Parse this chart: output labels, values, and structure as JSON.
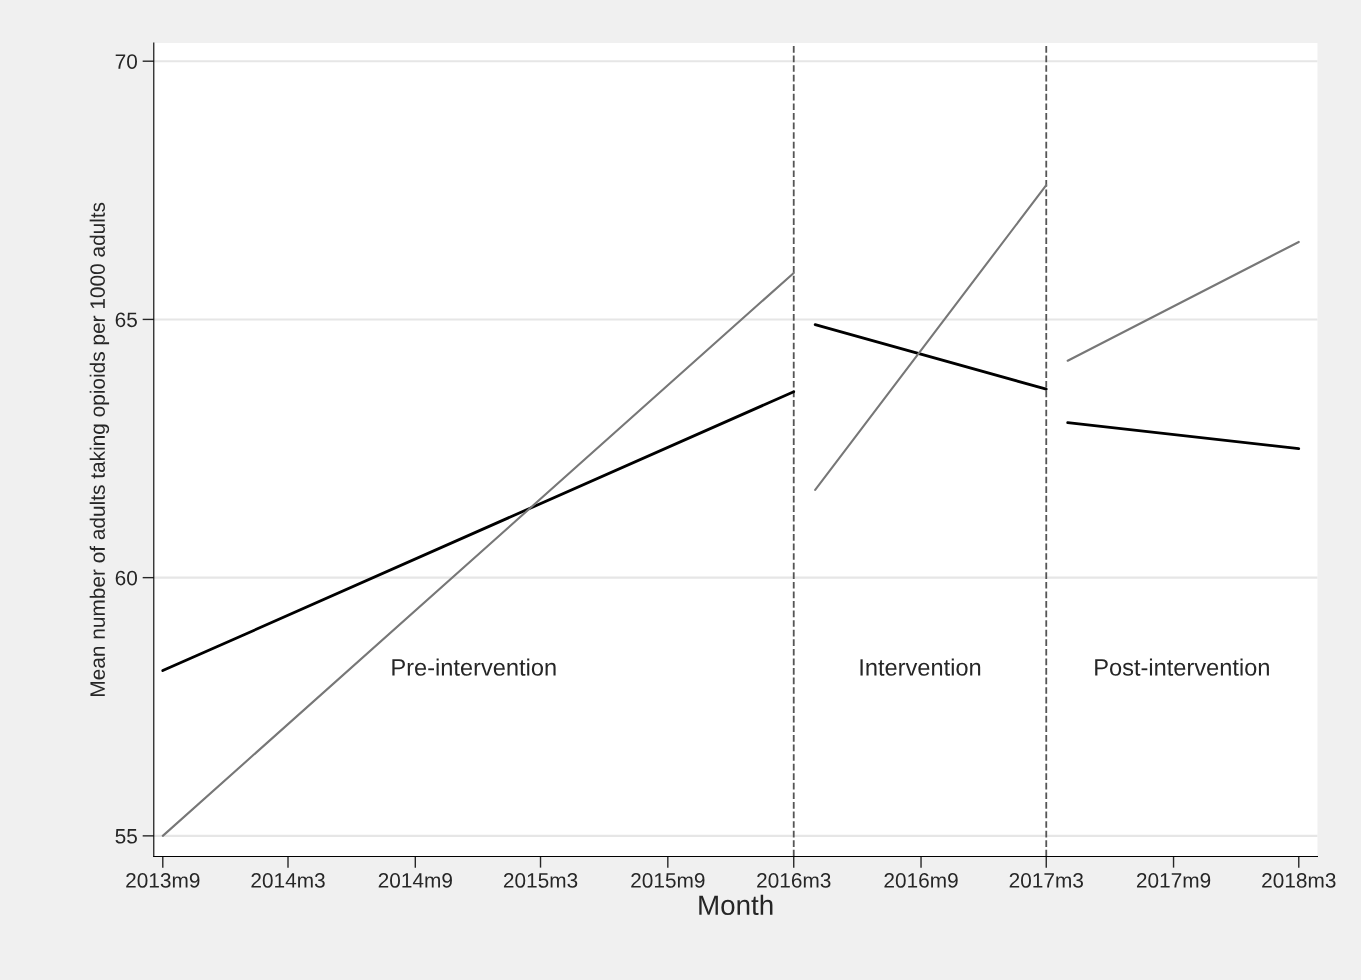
{
  "chart_data": {
    "type": "line",
    "xlabel": "Month",
    "ylabel": "Mean number of adults taking opioids per 1000 adults",
    "series": [
      {
        "color": "#000000",
        "x": [
          "2013-09",
          "2016-03"
        ],
        "values": [
          58.2,
          63.6
        ]
      },
      {
        "color": "#000000",
        "x": [
          "2016-04",
          "2017-03"
        ],
        "values": [
          64.9,
          63.65
        ]
      },
      {
        "color": "#000000",
        "x": [
          "2017-04",
          "2018-03"
        ],
        "values": [
          63.0,
          62.5
        ]
      },
      {
        "color": "#777777",
        "x": [
          "2013-09",
          "2016-03"
        ],
        "values": [
          55.0,
          65.9
        ]
      },
      {
        "color": "#777777",
        "x": [
          "2016-04",
          "2017-03"
        ],
        "values": [
          61.7,
          67.6
        ]
      },
      {
        "color": "#777777",
        "x": [
          "2017-04",
          "2018-03"
        ],
        "values": [
          64.2,
          66.5
        ]
      }
    ],
    "xlim": [
      "2013-08-19",
      "2018-03-28"
    ],
    "ylim": [
      54.6,
      70.35
    ],
    "xticks": [
      {
        "value": "2013-09",
        "label": "2013m9"
      },
      {
        "value": "2014-03",
        "label": "2014m3"
      },
      {
        "value": "2014-09",
        "label": "2014m9"
      },
      {
        "value": "2015-03",
        "label": "2015m3"
      },
      {
        "value": "2015-09",
        "label": "2015m9"
      },
      {
        "value": "2016-03",
        "label": "2016m3"
      },
      {
        "value": "2016-09",
        "label": "2016m9"
      },
      {
        "value": "2017-03",
        "label": "2017m3"
      },
      {
        "value": "2017-09",
        "label": "2017m9"
      },
      {
        "value": "2018-03",
        "label": "2018m3"
      }
    ],
    "yticks": [
      55,
      60,
      65,
      70
    ],
    "grid": "y",
    "line_style": "solid",
    "marker": "none",
    "ref_lines": [
      {
        "axis": "x",
        "value": "2016-03",
        "line_style": "dashed",
        "color": "#555555"
      },
      {
        "axis": "x",
        "value": "2017-03",
        "line_style": "dashed",
        "color": "#555555"
      }
    ],
    "annotations": [
      "Pre-intervention",
      "Intervention",
      "Post-intervention"
    ]
  }
}
